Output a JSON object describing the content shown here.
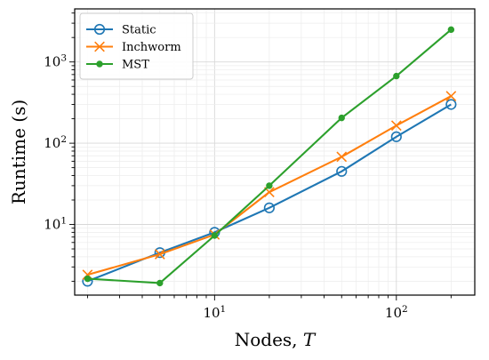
{
  "chart_data": {
    "type": "line",
    "xscale": "log",
    "yscale": "log",
    "xlabel": "Nodes, ",
    "xlabel_var": "T",
    "ylabel": "Runtime (s)",
    "xlim": [
      1.7,
      270
    ],
    "ylim": [
      1.35,
      4500
    ],
    "grid": true,
    "legend": "top-left",
    "x_ticks": [
      {
        "value": 10,
        "base": "10",
        "exp": "1"
      },
      {
        "value": 100,
        "base": "10",
        "exp": "2"
      }
    ],
    "y_ticks": [
      {
        "value": 10,
        "base": "10",
        "exp": "1"
      },
      {
        "value": 100,
        "base": "10",
        "exp": "2"
      },
      {
        "value": 1000,
        "base": "10",
        "exp": "3"
      }
    ],
    "series": [
      {
        "name": "Static",
        "color": "#1f77b4",
        "marker": "circle",
        "x": [
          2,
          5,
          10,
          20,
          50,
          100,
          200
        ],
        "y": [
          2.0,
          4.5,
          8.0,
          16,
          45,
          120,
          300
        ]
      },
      {
        "name": "Inchworm",
        "color": "#ff7f0e",
        "marker": "x",
        "x": [
          2,
          5,
          10,
          20,
          50,
          100,
          200
        ],
        "y": [
          2.4,
          4.3,
          7.5,
          25,
          68,
          165,
          380
        ]
      },
      {
        "name": "MST",
        "color": "#2ca02c",
        "marker": "dot",
        "x": [
          2,
          5,
          10,
          20,
          50,
          100,
          200
        ],
        "y": [
          2.15,
          1.9,
          7.3,
          30,
          205,
          670,
          2500
        ]
      }
    ]
  }
}
